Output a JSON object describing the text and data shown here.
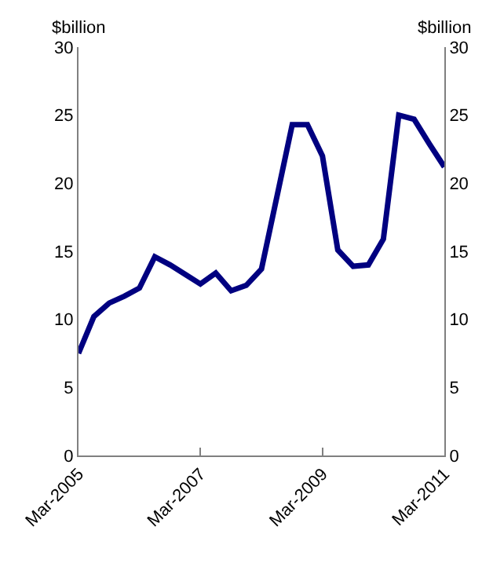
{
  "chart_data": {
    "type": "line",
    "ylabel": "$billion",
    "y2label": "$billion",
    "x": [
      "2005-03",
      "2005-06",
      "2005-09",
      "2005-12",
      "2006-03",
      "2006-06",
      "2006-09",
      "2006-12",
      "2007-03",
      "2007-06",
      "2007-09",
      "2007-12",
      "2008-03",
      "2008-06",
      "2008-09",
      "2008-12",
      "2009-03",
      "2009-06",
      "2009-09",
      "2009-12",
      "2010-03",
      "2010-06",
      "2010-09",
      "2010-12",
      "2011-03"
    ],
    "series": [
      {
        "color": "#000080",
        "values": [
          7.5,
          10.2,
          11.2,
          11.7,
          12.3,
          14.6,
          14.0,
          13.3,
          12.6,
          13.4,
          12.1,
          12.5,
          13.7,
          19.0,
          24.3,
          24.3,
          22.0,
          15.1,
          13.9,
          14.0,
          15.9,
          25.0,
          24.7,
          22.9,
          21.2
        ]
      }
    ],
    "xlim": [
      "2005-03",
      "2011-03"
    ],
    "xticks": [
      {
        "value": "2005-03",
        "label": "Mar-2005"
      },
      {
        "value": "2007-03",
        "label": "Mar-2007"
      },
      {
        "value": "2009-03",
        "label": "Mar-2009"
      },
      {
        "value": "2011-03",
        "label": "Mar-2011"
      }
    ],
    "ylim": [
      0,
      30
    ],
    "yticks": [
      0,
      5,
      10,
      15,
      20,
      25,
      30
    ],
    "y2lim": [
      0,
      30
    ],
    "y2ticks": [
      0,
      5,
      10,
      15,
      20,
      25,
      30
    ],
    "marker": "none",
    "line_style": "solid"
  }
}
